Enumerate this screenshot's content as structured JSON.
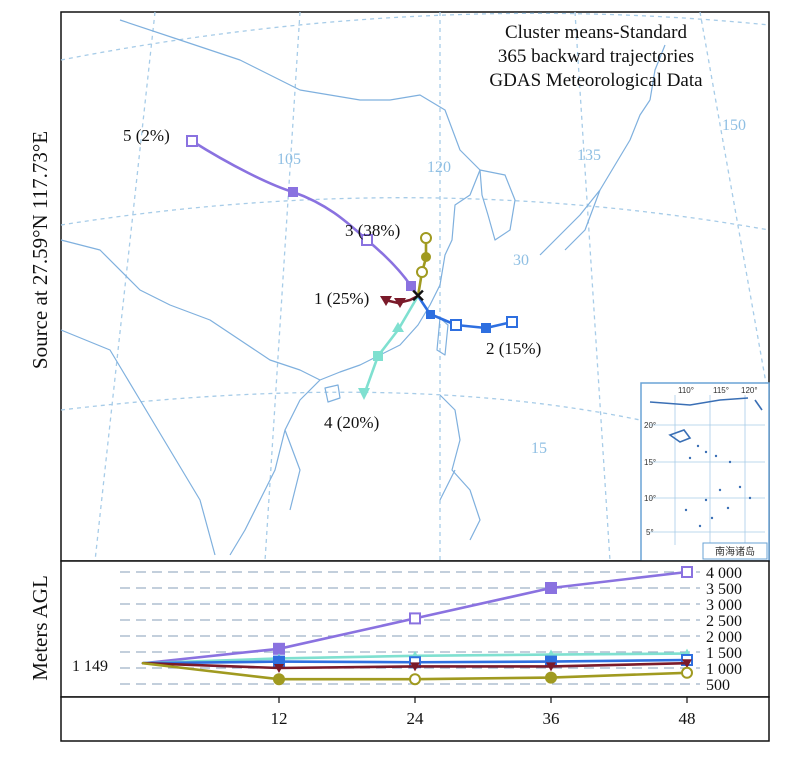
{
  "title": {
    "line1": "Cluster means-Standard",
    "line2": "365 backward trajectories",
    "line3": "GDAS Meteorological Data"
  },
  "source_label": "Source at 27.59°N 117.73°E",
  "map": {
    "lon_labels": [
      "105",
      "120",
      "135",
      "150"
    ],
    "lat_labels": [
      "30",
      "15"
    ],
    "graticule_color": "#9fc7e6",
    "coast_color": "#7fb0de",
    "inset": {
      "lon_labels": [
        "110°",
        "115°",
        "120°"
      ],
      "lat_labels": [
        "20°",
        "15°",
        "10°",
        "5°"
      ],
      "caption": "南海诸岛"
    }
  },
  "clusters": [
    {
      "id": 1,
      "label": "1 (25%)",
      "percent": 25,
      "color": "#7a1a2a",
      "marker": "triangle-down"
    },
    {
      "id": 2,
      "label": "2 (15%)",
      "percent": 15,
      "color": "#2e6fe0",
      "marker": "square"
    },
    {
      "id": 3,
      "label": "3 (38%)",
      "percent": 38,
      "color": "#a09a20",
      "marker": "circle"
    },
    {
      "id": 4,
      "label": "4 (20%)",
      "percent": 20,
      "color": "#7fe0d0",
      "marker": "triangle-up"
    },
    {
      "id": 5,
      "label": "5 (2%)",
      "percent": 2,
      "color": "#8a72e0",
      "marker": "square"
    }
  ],
  "chart_data": {
    "type": "line",
    "ylabel": "Meters AGL",
    "start_height_label": "1 149",
    "start_height": 1149,
    "x": [
      0,
      12,
      24,
      36,
      48
    ],
    "x_tick_labels": [
      "12",
      "24",
      "36",
      "48"
    ],
    "y_tick_labels": [
      "4 000",
      "3 500",
      "3 000",
      "2 500",
      "2 000",
      "1 500",
      "1 000",
      "500"
    ],
    "ylim": [
      0,
      4200
    ],
    "series": [
      {
        "cluster": 5,
        "values": [
          1149,
          1600,
          2550,
          3500,
          4000
        ]
      },
      {
        "cluster": 4,
        "values": [
          1149,
          1300,
          1380,
          1420,
          1450
        ]
      },
      {
        "cluster": 2,
        "values": [
          1149,
          1200,
          1180,
          1200,
          1250
        ]
      },
      {
        "cluster": 1,
        "values": [
          1149,
          1000,
          1050,
          1050,
          1150
        ]
      },
      {
        "cluster": 3,
        "values": [
          1149,
          650,
          650,
          700,
          850
        ]
      }
    ]
  }
}
